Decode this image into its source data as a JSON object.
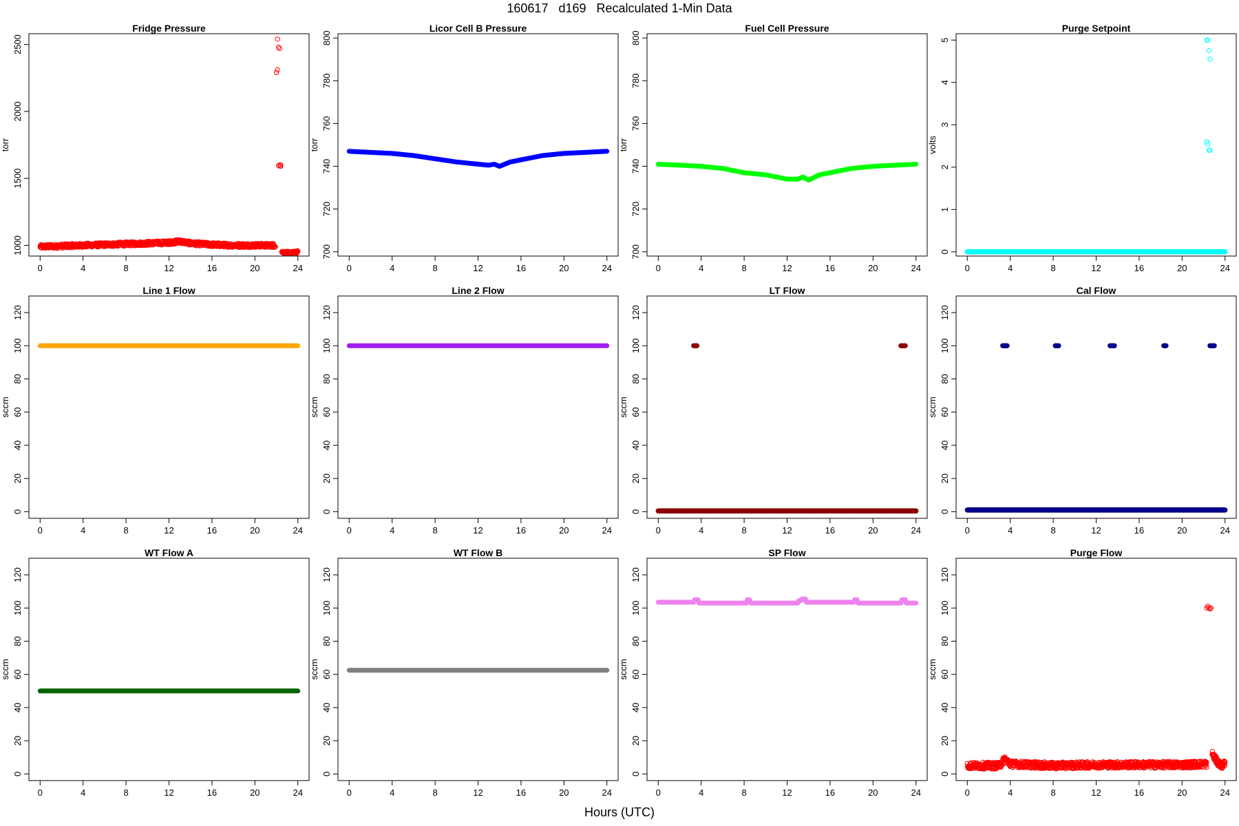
{
  "figure": {
    "title": "160617   d169   Recalculated 1-Min Data",
    "xlabel": "Hours (UTC)"
  },
  "chart_data": [
    {
      "type": "scatter",
      "title": "Fridge Pressure",
      "ylabel": "torr",
      "color": "#ff0000",
      "marker": "open-circle",
      "xlim": [
        0,
        24
      ],
      "xticks": [
        0,
        4,
        8,
        12,
        16,
        20,
        24
      ],
      "ylim": [
        920,
        2580
      ],
      "yticks": [
        1000,
        1500,
        2000,
        2500
      ],
      "series": [
        {
          "x": [
            0,
            2,
            4,
            6,
            8,
            10,
            12,
            13,
            14,
            16,
            18,
            20,
            21.9
          ],
          "y": [
            990,
            995,
            1000,
            1005,
            1010,
            1015,
            1020,
            1030,
            1015,
            1005,
            1000,
            1000,
            1000
          ],
          "noise": 15
        },
        {
          "x": [
            22.0,
            22.1,
            22.1,
            22.2,
            22.2,
            22.3,
            22.3,
            22.4,
            22.4
          ],
          "y": [
            2290,
            2310,
            2540,
            2480,
            1595,
            2470,
            1600,
            1590,
            1600
          ],
          "noise": 0
        },
        {
          "x": [
            22.5,
            23.0,
            23.5,
            24
          ],
          "y": [
            950,
            945,
            945,
            950
          ],
          "noise": 10
        }
      ]
    },
    {
      "type": "line",
      "title": "Licor Cell B Pressure",
      "ylabel": "torr",
      "color": "#0000ff",
      "marker": "filled",
      "xlim": [
        0,
        24
      ],
      "xticks": [
        0,
        4,
        8,
        12,
        16,
        20,
        24
      ],
      "ylim": [
        698,
        802
      ],
      "yticks": [
        700,
        720,
        740,
        760,
        780,
        800
      ],
      "series": [
        {
          "x": [
            0,
            2,
            4,
            6,
            8,
            10,
            12,
            13,
            13.5,
            14,
            15,
            16,
            18,
            20,
            22,
            24
          ],
          "y": [
            747,
            746.5,
            746,
            745,
            743.5,
            742,
            741,
            740.5,
            741,
            740,
            742,
            743,
            745,
            746,
            746.5,
            747
          ],
          "noise": 0
        }
      ]
    },
    {
      "type": "line",
      "title": "Fuel Cell Pressure",
      "ylabel": "torr",
      "color": "#00ff00",
      "marker": "filled",
      "xlim": [
        0,
        24
      ],
      "xticks": [
        0,
        4,
        8,
        12,
        16,
        20,
        24
      ],
      "ylim": [
        698,
        802
      ],
      "yticks": [
        700,
        720,
        740,
        760,
        780,
        800
      ],
      "series": [
        {
          "x": [
            0,
            2,
            4,
            6,
            8,
            10,
            12,
            13,
            13.5,
            14,
            15,
            16,
            18,
            20,
            22,
            24
          ],
          "y": [
            741,
            740.5,
            740,
            739,
            737,
            736,
            734,
            734,
            735,
            733.5,
            736,
            737,
            739,
            740,
            740.5,
            741
          ],
          "noise": 0
        }
      ]
    },
    {
      "type": "scatter",
      "title": "Purge Setpoint",
      "ylabel": "volts",
      "color": "#00ffff",
      "marker": "open-circle",
      "xlim": [
        0,
        24
      ],
      "xticks": [
        0,
        4,
        8,
        12,
        16,
        20,
        24
      ],
      "ylim": [
        -0.1,
        5.15
      ],
      "yticks": [
        0,
        1,
        2,
        3,
        4,
        5
      ],
      "series": [
        {
          "x": [
            0,
            24
          ],
          "y": [
            0,
            0
          ],
          "noise": 0
        },
        {
          "x": [
            22.3,
            22.4,
            22.5,
            22.6,
            22.3,
            22.4,
            22.5,
            22.6
          ],
          "y": [
            5,
            5,
            4.75,
            4.55,
            2.6,
            2.55,
            2.4,
            2.4
          ],
          "noise": 0
        }
      ]
    },
    {
      "type": "line",
      "title": "Line 1 Flow",
      "ylabel": "sccm",
      "color": "#ffa500",
      "marker": "filled",
      "xlim": [
        0,
        24
      ],
      "xticks": [
        0,
        4,
        8,
        12,
        16,
        20,
        24
      ],
      "ylim": [
        -4,
        130
      ],
      "yticks": [
        0,
        20,
        40,
        60,
        80,
        100,
        120
      ],
      "series": [
        {
          "x": [
            0,
            24
          ],
          "y": [
            100,
            100
          ],
          "noise": 0
        }
      ]
    },
    {
      "type": "line",
      "title": "Line 2 Flow",
      "ylabel": "sccm",
      "color": "#a020f0",
      "marker": "filled",
      "xlim": [
        0,
        24
      ],
      "xticks": [
        0,
        4,
        8,
        12,
        16,
        20,
        24
      ],
      "ylim": [
        -4,
        130
      ],
      "yticks": [
        0,
        20,
        40,
        60,
        80,
        100,
        120
      ],
      "series": [
        {
          "x": [
            0,
            24
          ],
          "y": [
            100,
            100
          ],
          "noise": 0
        }
      ]
    },
    {
      "type": "scatter",
      "title": "LT Flow",
      "ylabel": "sccm",
      "color": "#8b0000",
      "marker": "filled",
      "xlim": [
        0,
        24
      ],
      "xticks": [
        0,
        4,
        8,
        12,
        16,
        20,
        24
      ],
      "ylim": [
        -4,
        130
      ],
      "yticks": [
        0,
        20,
        40,
        60,
        80,
        100,
        120
      ],
      "series": [
        {
          "x": [
            0,
            24
          ],
          "y": [
            0.5,
            0.5
          ],
          "noise": 0
        },
        {
          "x": [
            3.3,
            3.4,
            3.5,
            3.6
          ],
          "y": [
            100,
            100,
            100,
            100
          ],
          "noise": 0
        },
        {
          "x": [
            22.6,
            22.7,
            22.8,
            22.9,
            23.0
          ],
          "y": [
            100,
            100,
            100,
            100,
            100
          ],
          "noise": 0
        }
      ]
    },
    {
      "type": "scatter",
      "title": "Cal Flow",
      "ylabel": "sccm",
      "color": "#00008b",
      "marker": "filled",
      "xlim": [
        0,
        24
      ],
      "xticks": [
        0,
        4,
        8,
        12,
        16,
        20,
        24
      ],
      "ylim": [
        -4,
        130
      ],
      "yticks": [
        0,
        20,
        40,
        60,
        80,
        100,
        120
      ],
      "series": [
        {
          "x": [
            0,
            24
          ],
          "y": [
            1,
            1
          ],
          "noise": 0
        },
        {
          "x": [
            3.3,
            3.4,
            3.5,
            3.6,
            3.7,
            8.2,
            8.3,
            8.4,
            8.5,
            13.3,
            13.4,
            13.5,
            13.6,
            13.7,
            18.3,
            18.4,
            18.5,
            22.6,
            22.7,
            22.8,
            22.9,
            23.0
          ],
          "y": [
            100,
            100,
            100,
            100,
            100,
            100,
            100,
            100,
            100,
            100,
            100,
            100,
            100,
            100,
            100,
            100,
            100,
            100,
            100,
            100,
            100,
            100
          ],
          "noise": 0
        }
      ]
    },
    {
      "type": "line",
      "title": "WT Flow A",
      "ylabel": "sccm",
      "color": "#006400",
      "marker": "filled",
      "xlim": [
        0,
        24
      ],
      "xticks": [
        0,
        4,
        8,
        12,
        16,
        20,
        24
      ],
      "ylim": [
        -4,
        130
      ],
      "yticks": [
        0,
        20,
        40,
        60,
        80,
        100,
        120
      ],
      "series": [
        {
          "x": [
            0,
            24
          ],
          "y": [
            50,
            50
          ],
          "noise": 0
        }
      ]
    },
    {
      "type": "line",
      "title": "WT Flow B",
      "ylabel": "sccm",
      "color": "#808080",
      "marker": "filled",
      "xlim": [
        0,
        24
      ],
      "xticks": [
        0,
        4,
        8,
        12,
        16,
        20,
        24
      ],
      "ylim": [
        -4,
        130
      ],
      "yticks": [
        0,
        20,
        40,
        60,
        80,
        100,
        120
      ],
      "series": [
        {
          "x": [
            0,
            24
          ],
          "y": [
            62.5,
            62.5
          ],
          "noise": 0
        }
      ]
    },
    {
      "type": "line",
      "title": "SP Flow",
      "ylabel": "sccm",
      "color": "#ee82ee",
      "marker": "filled",
      "xlim": [
        0,
        24
      ],
      "xticks": [
        0,
        4,
        8,
        12,
        16,
        20,
        24
      ],
      "ylim": [
        -4,
        130
      ],
      "yticks": [
        0,
        20,
        40,
        60,
        80,
        100,
        120
      ],
      "series": [
        {
          "x": [
            0,
            3.3,
            3.4,
            3.7,
            3.8,
            8.2,
            8.3,
            8.5,
            8.6,
            13.0,
            13.1,
            13.3,
            13.4,
            13.7,
            13.8,
            18.2,
            18.3,
            18.5,
            18.6,
            22.6,
            22.7,
            23.0,
            23.1,
            24
          ],
          "y": [
            103.5,
            103.5,
            105,
            105,
            103,
            103,
            105,
            105,
            103,
            103,
            104.5,
            104.5,
            105.5,
            105.5,
            103.5,
            103.5,
            105,
            105,
            103,
            103,
            105,
            105,
            103,
            103
          ],
          "noise": 0
        }
      ]
    },
    {
      "type": "scatter",
      "title": "Purge Flow",
      "ylabel": "sccm",
      "color": "#ff0000",
      "marker": "open-circle",
      "xlim": [
        0,
        24
      ],
      "xticks": [
        0,
        4,
        8,
        12,
        16,
        20,
        24
      ],
      "ylim": [
        -4,
        130
      ],
      "yticks": [
        0,
        20,
        40,
        60,
        80,
        100,
        120
      ],
      "series": [
        {
          "x": [
            0,
            3,
            3.5,
            4,
            8,
            12,
            16,
            20,
            22.3
          ],
          "y": [
            5,
            5,
            9,
            6,
            5,
            5.5,
            5.5,
            5.5,
            6
          ],
          "noise": 2
        },
        {
          "x": [
            22.3,
            22.4,
            22.5,
            22.6,
            22.7
          ],
          "y": [
            100,
            101,
            100,
            99.5,
            100
          ],
          "noise": 0
        },
        {
          "x": [
            22.8,
            23.2,
            23.6,
            24
          ],
          "y": [
            12,
            8,
            5,
            6
          ],
          "noise": 2
        }
      ]
    }
  ]
}
